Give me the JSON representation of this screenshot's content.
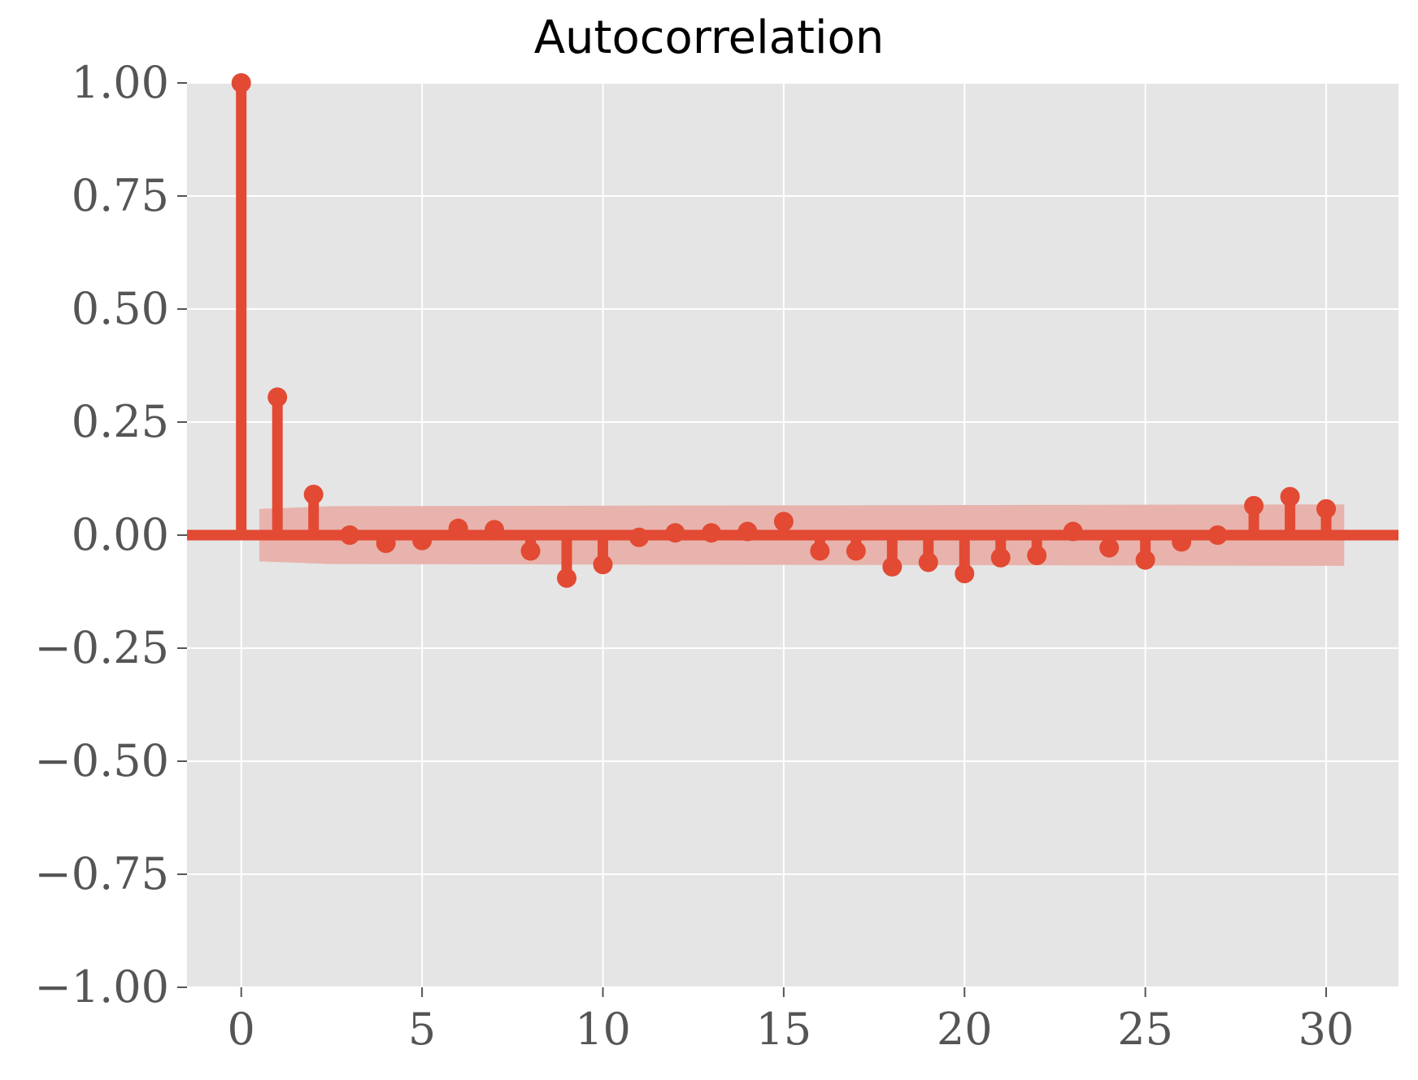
{
  "chart_data": {
    "type": "stem",
    "title": "Autocorrelation",
    "xlabel": "",
    "ylabel": "",
    "xlim": [
      -1.5,
      32
    ],
    "ylim": [
      -1.0,
      1.0
    ],
    "xticks": [
      0,
      5,
      10,
      15,
      20,
      25,
      30
    ],
    "xtick_labels": [
      "0",
      "5",
      "10",
      "15",
      "20",
      "25",
      "30"
    ],
    "yticks": [
      1.0,
      0.75,
      0.5,
      0.25,
      0.0,
      -0.25,
      -0.5,
      -0.75,
      -1.0
    ],
    "ytick_labels": [
      "1.00",
      "0.75",
      "0.50",
      "0.25",
      "0.00",
      "−0.25",
      "−0.50",
      "−0.75",
      "−1.00"
    ],
    "grid": true,
    "lags": [
      0,
      1,
      2,
      3,
      4,
      5,
      6,
      7,
      8,
      9,
      10,
      11,
      12,
      13,
      14,
      15,
      16,
      17,
      18,
      19,
      20,
      21,
      22,
      23,
      24,
      25,
      26,
      27,
      28,
      29,
      30
    ],
    "values": [
      1.0,
      0.305,
      0.09,
      0.0,
      -0.018,
      -0.012,
      0.015,
      0.012,
      -0.035,
      -0.095,
      -0.065,
      -0.005,
      0.005,
      0.005,
      0.008,
      0.03,
      -0.035,
      -0.035,
      -0.07,
      -0.06,
      -0.085,
      -0.05,
      -0.045,
      0.008,
      -0.028,
      -0.055,
      -0.015,
      0.0,
      0.065,
      0.085,
      0.058
    ],
    "confidence_band": {
      "x": [
        0.5,
        2.5,
        30.5
      ],
      "upper": [
        0.058,
        0.064,
        0.068
      ],
      "lower": [
        -0.058,
        -0.064,
        -0.068
      ]
    },
    "colors": {
      "stem": "#E24A33",
      "band": "#E8B3AC",
      "background": "#E5E5E5",
      "grid": "#FFFFFF"
    }
  }
}
